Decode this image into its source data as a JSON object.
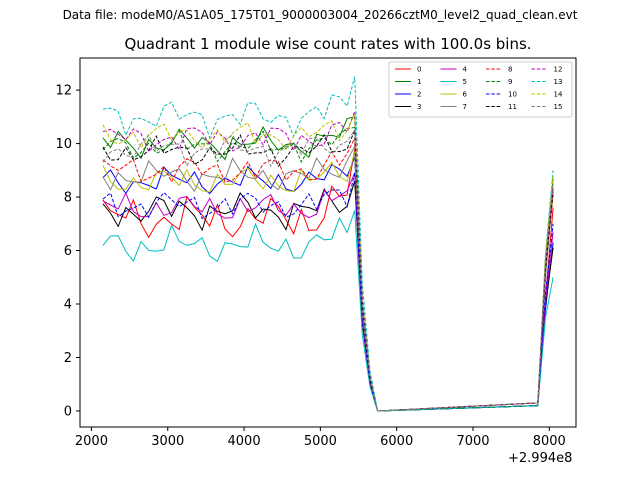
{
  "suptitle": "Data file: modeM0/AS1A05_175T01_9000003004_20266cztM0_level2_quad_clean.evt",
  "chart_data": {
    "type": "line",
    "title": "Quadrant 1 module wise count rates with 100.0s bins.",
    "xlabel": "",
    "ylabel": "",
    "x_offset_label": "+2.994e8",
    "xlim": [
      1850,
      8350
    ],
    "ylim": [
      -0.6,
      13.2
    ],
    "xticks": [
      2000,
      3000,
      4000,
      5000,
      6000,
      7000,
      8000
    ],
    "yticks": [
      0,
      2,
      4,
      6,
      8,
      10,
      12
    ],
    "grid": false,
    "legend_position": "upper right",
    "legend_columns": 4,
    "x_segment1_start": 2150,
    "x_segment1_step": 100,
    "x_segment1_count": 37,
    "x_segment2": [
      7850,
      7950,
      8050
    ],
    "series": [
      {
        "name": "0",
        "color": "#ff0000",
        "dash": false,
        "base": 7.2,
        "amp": 0.45,
        "phase": 0.3,
        "peak": 9.8,
        "end": [
          0.3,
          4.2,
          7.6
        ]
      },
      {
        "name": "1",
        "color": "#008000",
        "dash": false,
        "base": 10.0,
        "amp": 0.3,
        "phase": 1.1,
        "peak": 11.0,
        "end": [
          0.2,
          5.5,
          8.3
        ]
      },
      {
        "name": "2",
        "color": "#0000ff",
        "dash": false,
        "base": 8.6,
        "amp": 0.28,
        "phase": 2.0,
        "peak": 9.5,
        "end": [
          0.2,
          3.8,
          6.3
        ]
      },
      {
        "name": "3",
        "color": "#000000",
        "dash": false,
        "base": 7.5,
        "amp": 0.35,
        "phase": 2.7,
        "peak": 8.6,
        "end": [
          0.2,
          4.0,
          6.1
        ]
      },
      {
        "name": "4",
        "color": "#bf00bf",
        "dash": false,
        "base": 7.6,
        "amp": 0.3,
        "phase": 0.8,
        "peak": 8.9,
        "end": [
          0.3,
          4.1,
          6.7
        ]
      },
      {
        "name": "5",
        "color": "#00bfbf",
        "dash": false,
        "base": 6.2,
        "amp": 0.35,
        "phase": 1.6,
        "peak": 7.5,
        "end": [
          0.2,
          3.5,
          5.0
        ]
      },
      {
        "name": "6",
        "color": "#bfbf00",
        "dash": false,
        "base": 8.6,
        "amp": 0.3,
        "phase": 2.4,
        "peak": 9.7,
        "end": [
          0.3,
          5.1,
          8.6
        ]
      },
      {
        "name": "7",
        "color": "#808080",
        "dash": false,
        "base": 8.8,
        "amp": 0.3,
        "phase": 3.2,
        "peak": 9.9,
        "end": [
          0.3,
          5.0,
          8.3
        ]
      },
      {
        "name": "8",
        "color": "#ff0000",
        "dash": true,
        "base": 9.0,
        "amp": 0.3,
        "phase": 0.5,
        "peak": 10.2,
        "end": [
          0.3,
          5.4,
          8.1
        ]
      },
      {
        "name": "9",
        "color": "#008000",
        "dash": true,
        "base": 9.9,
        "amp": 0.28,
        "phase": 1.3,
        "peak": 10.6,
        "end": [
          0.2,
          5.7,
          8.7
        ]
      },
      {
        "name": "10",
        "color": "#0000ff",
        "dash": true,
        "base": 7.7,
        "amp": 0.3,
        "phase": 2.2,
        "peak": 8.9,
        "end": [
          0.2,
          4.4,
          7.0
        ]
      },
      {
        "name": "11",
        "color": "#000000",
        "dash": true,
        "base": 9.7,
        "amp": 0.28,
        "phase": 2.9,
        "peak": 10.5,
        "end": [
          0.3,
          5.3,
          8.2
        ]
      },
      {
        "name": "12",
        "color": "#bf00bf",
        "dash": true,
        "base": 10.2,
        "amp": 0.3,
        "phase": 0.1,
        "peak": 11.2,
        "end": [
          0.3,
          5.6,
          8.4
        ]
      },
      {
        "name": "13",
        "color": "#00bfbf",
        "dash": true,
        "base": 11.0,
        "amp": 0.35,
        "phase": 1.9,
        "peak": 12.5,
        "end": [
          0.2,
          5.9,
          9.0
        ]
      },
      {
        "name": "14",
        "color": "#bfbf00",
        "dash": true,
        "base": 10.3,
        "amp": 0.28,
        "phase": 2.6,
        "peak": 11.1,
        "end": [
          0.3,
          5.8,
          8.8
        ]
      },
      {
        "name": "15",
        "color": "#808080",
        "dash": true,
        "base": 9.8,
        "amp": 0.3,
        "phase": 3.5,
        "peak": 10.5,
        "end": [
          0.3,
          5.5,
          8.5
        ]
      }
    ]
  }
}
